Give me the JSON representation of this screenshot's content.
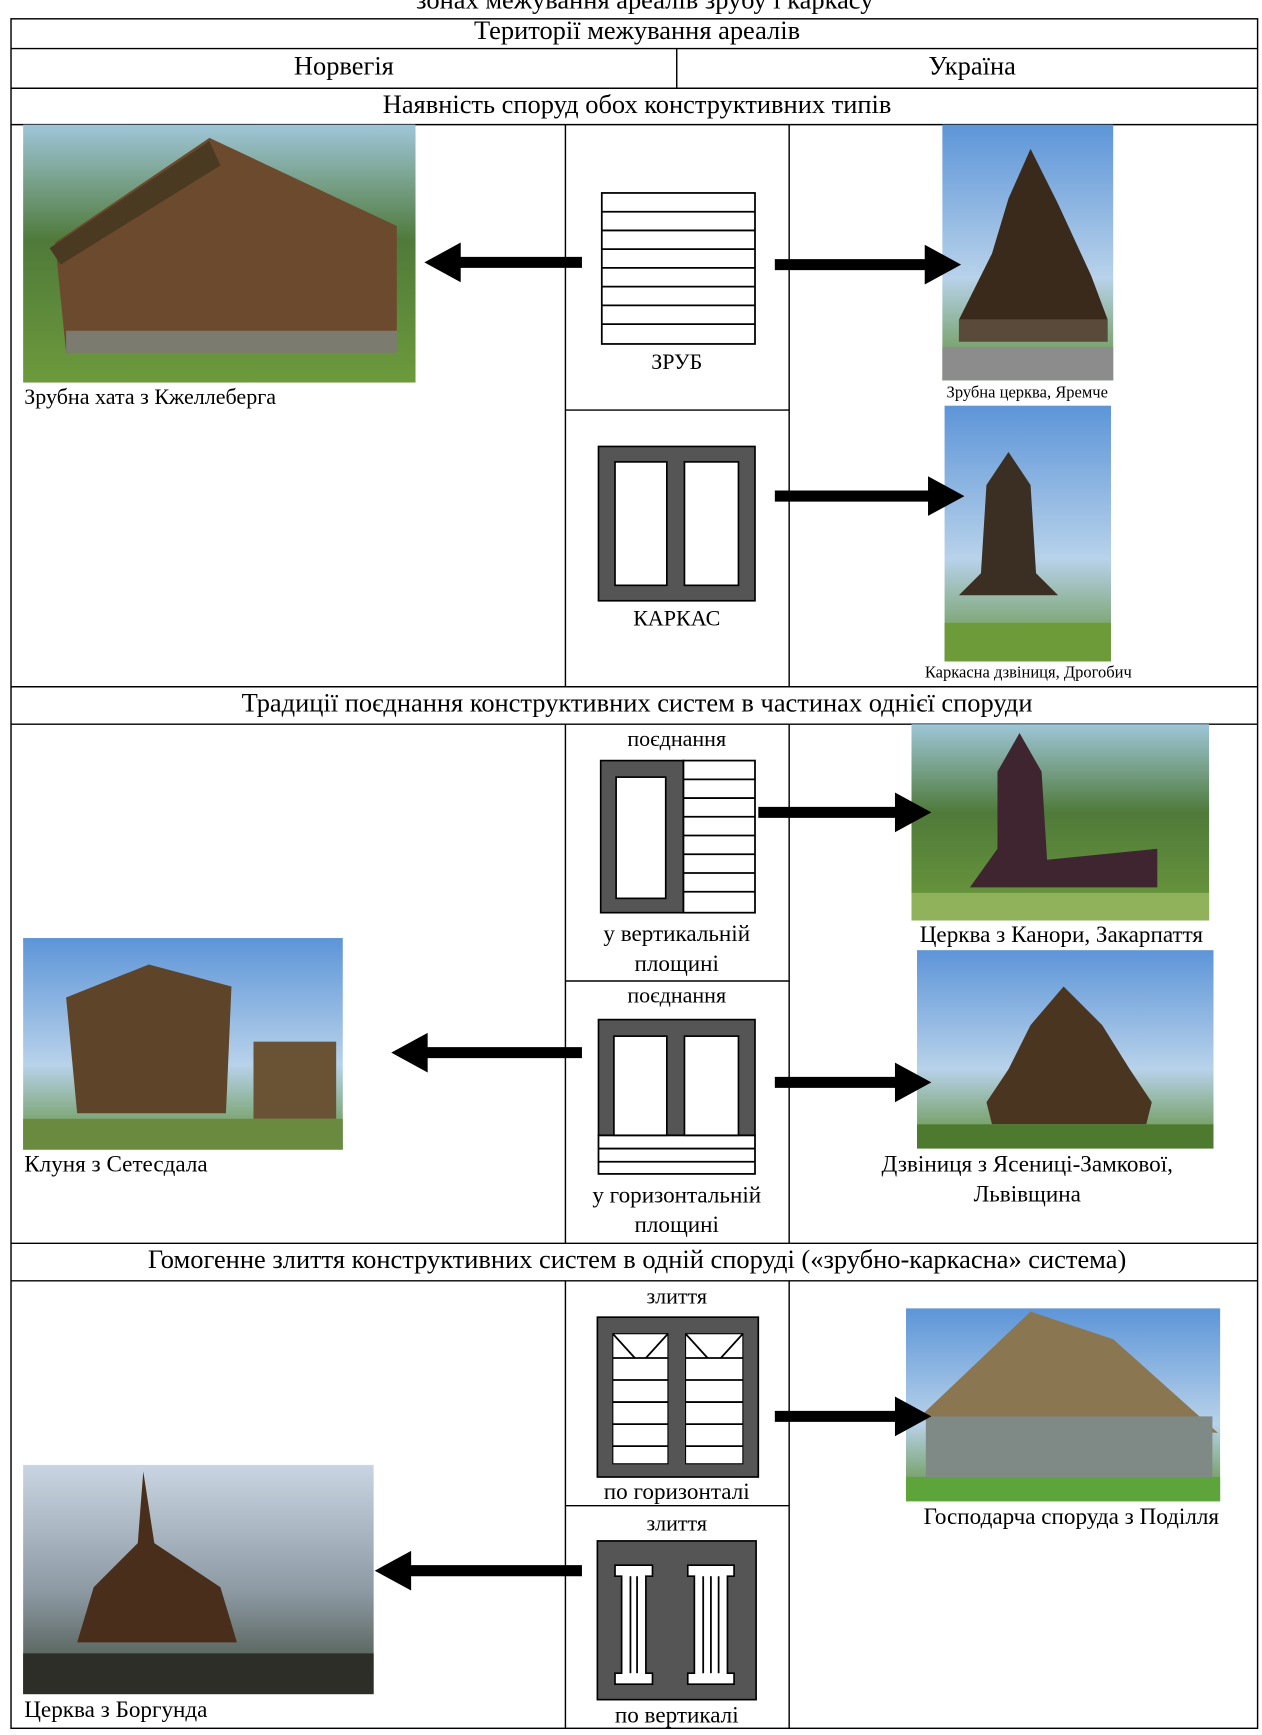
{
  "header": {
    "caption": "зонах межування ареалів зрубу і каркасу",
    "title": "Території межування ареалів",
    "norway": "Норвегія",
    "ukraine": "Україна"
  },
  "sections": [
    {
      "title": "Наявність споруд обох конструктивних типів",
      "norway_caption": "Зрубна хата з Кжеллеберга",
      "types": [
        {
          "label": [
            "ЗРУБ"
          ]
        },
        {
          "label": [
            "КАРКАС"
          ]
        }
      ],
      "ukraine_captions": [
        [
          "Зрубна церква, Яремче"
        ],
        [
          "Каркасна дзвіниця, Дрогобич"
        ]
      ]
    },
    {
      "title": "Традиції поєднання конструктивних систем в частинах однієї споруди",
      "norway_caption": "Клуня з Сетесдала",
      "types": [
        {
          "kind": "поєднання",
          "label": [
            "у вертикальній",
            "площині"
          ]
        },
        {
          "kind": "поєднання",
          "label": [
            "у горизонтальній",
            "площині"
          ]
        }
      ],
      "ukraine_captions": [
        [
          "Церква з Канори, Закарпаття"
        ],
        [
          "Дзвіниця з Ясениці-Замкової,",
          "Львівщина"
        ]
      ]
    },
    {
      "title": "Гомогенне злиття конструктивних систем в одній споруді («зрубно-каркасна» система)",
      "norway_caption": "Церква з Боргунда",
      "types": [
        {
          "kind": "злиття",
          "label": [
            "по горизонталі"
          ]
        },
        {
          "kind": "злиття",
          "label": [
            "по вертикалі"
          ]
        }
      ],
      "ukraine_captions": [
        [
          "Господарча споруда з Поділля"
        ]
      ]
    }
  ]
}
